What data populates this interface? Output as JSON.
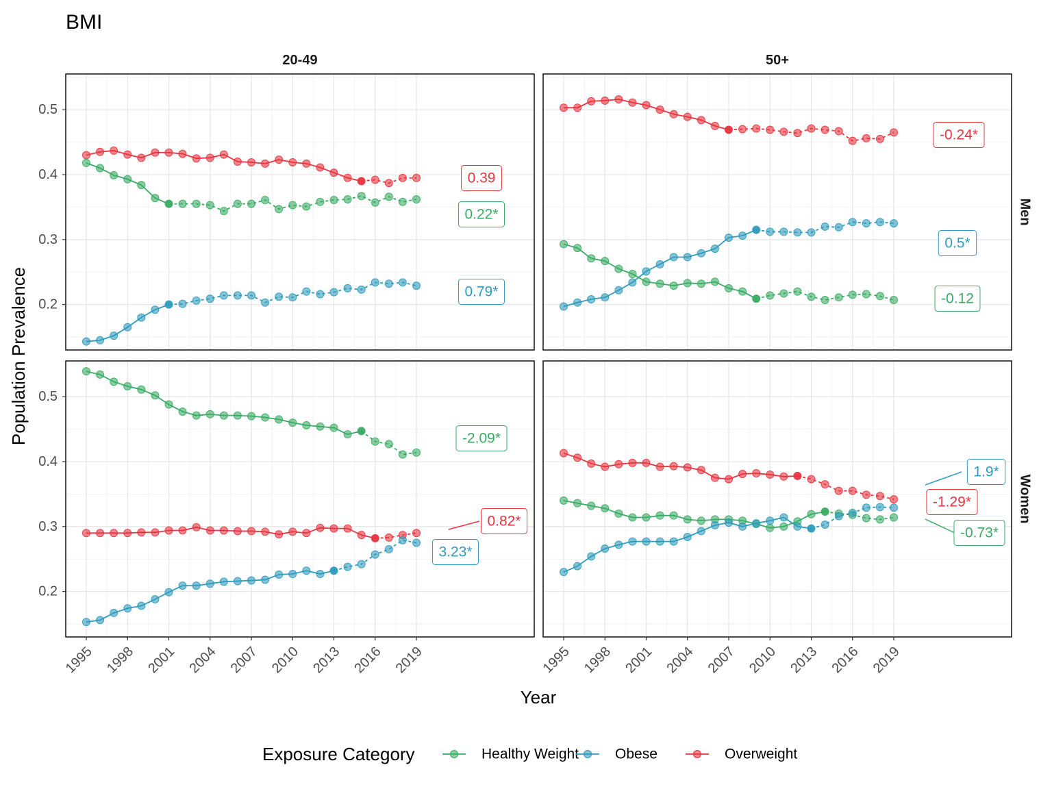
{
  "chart_data": {
    "type": "line",
    "title": "BMI",
    "xlabel": "Year",
    "ylabel": "Population Prevalence",
    "x_ticks": [
      "1995",
      "1998",
      "2001",
      "2004",
      "2007",
      "2010",
      "2013",
      "2016",
      "2019"
    ],
    "y_ticks": [
      "0.2",
      "0.3",
      "0.4",
      "0.5"
    ],
    "ylim": [
      0.13,
      0.555
    ],
    "xlim": [
      1995,
      2019
    ],
    "grid": true,
    "facet_columns": [
      "20-49",
      "50+"
    ],
    "facet_rows": [
      "Men",
      "Women"
    ],
    "legend": {
      "title": "Exposure Category",
      "position": "bottom",
      "entries": [
        "Healthy Weight",
        "Obese",
        "Overweight"
      ]
    },
    "colors": {
      "Healthy Weight": "#3aab64",
      "Obese": "#2e9bbd",
      "Overweight": "#e8343f"
    },
    "years": [
      1995,
      1996,
      1997,
      1998,
      1999,
      2000,
      2001,
      2002,
      2003,
      2004,
      2005,
      2006,
      2007,
      2008,
      2009,
      2010,
      2011,
      2012,
      2013,
      2014,
      2015,
      2016,
      2017,
      2018,
      2019
    ],
    "panels": [
      {
        "column": "20-49",
        "row": "Men",
        "series": [
          {
            "name": "Overweight",
            "breakpoint": 2015,
            "trend_label": "0.39",
            "values": [
              0.43,
              0.435,
              0.437,
              0.431,
              0.426,
              0.434,
              0.434,
              0.432,
              0.425,
              0.426,
              0.431,
              0.42,
              0.419,
              0.417,
              0.423,
              0.419,
              0.417,
              0.411,
              0.403,
              0.395,
              0.39,
              0.392,
              0.387,
              0.395,
              0.395
            ]
          },
          {
            "name": "Healthy Weight",
            "breakpoint": 2001,
            "trend_label": "0.22*",
            "values": [
              0.418,
              0.41,
              0.399,
              0.393,
              0.384,
              0.364,
              0.355,
              0.355,
              0.355,
              0.353,
              0.344,
              0.355,
              0.355,
              0.361,
              0.347,
              0.353,
              0.351,
              0.358,
              0.361,
              0.362,
              0.367,
              0.357,
              0.366,
              0.358,
              0.362
            ]
          },
          {
            "name": "Obese",
            "breakpoint": 2001,
            "trend_label": "0.79*",
            "values": [
              0.143,
              0.145,
              0.152,
              0.165,
              0.18,
              0.192,
              0.2,
              0.201,
              0.206,
              0.209,
              0.214,
              0.214,
              0.214,
              0.203,
              0.212,
              0.211,
              0.22,
              0.216,
              0.219,
              0.225,
              0.223,
              0.234,
              0.232,
              0.234,
              0.229
            ]
          }
        ]
      },
      {
        "column": "50+",
        "row": "Men",
        "series": [
          {
            "name": "Overweight",
            "breakpoint": 2007,
            "trend_label": "-0.24*",
            "values": [
              0.503,
              0.503,
              0.513,
              0.514,
              0.516,
              0.511,
              0.507,
              0.5,
              0.493,
              0.489,
              0.484,
              0.475,
              0.469,
              0.47,
              0.471,
              0.469,
              0.466,
              0.464,
              0.471,
              0.469,
              0.467,
              0.452,
              0.456,
              0.455,
              0.465
            ]
          },
          {
            "name": "Obese",
            "breakpoint": 2009,
            "trend_label": "0.5*",
            "values": [
              0.197,
              0.203,
              0.208,
              0.211,
              0.222,
              0.234,
              0.251,
              0.262,
              0.273,
              0.273,
              0.279,
              0.286,
              0.303,
              0.306,
              0.315,
              0.312,
              0.312,
              0.311,
              0.311,
              0.32,
              0.319,
              0.327,
              0.325,
              0.327,
              0.325
            ]
          },
          {
            "name": "Healthy Weight",
            "breakpoint": 2009,
            "trend_label": "-0.12",
            "values": [
              0.293,
              0.287,
              0.271,
              0.267,
              0.255,
              0.247,
              0.235,
              0.232,
              0.229,
              0.233,
              0.232,
              0.235,
              0.225,
              0.22,
              0.209,
              0.214,
              0.217,
              0.22,
              0.212,
              0.207,
              0.211,
              0.215,
              0.216,
              0.213,
              0.207
            ]
          }
        ]
      },
      {
        "column": "20-49",
        "row": "Women",
        "series": [
          {
            "name": "Healthy Weight",
            "breakpoint": 2015,
            "trend_label": "-2.09*",
            "values": [
              0.539,
              0.534,
              0.523,
              0.516,
              0.511,
              0.502,
              0.488,
              0.477,
              0.471,
              0.473,
              0.471,
              0.471,
              0.47,
              0.468,
              0.465,
              0.46,
              0.456,
              0.454,
              0.452,
              0.442,
              0.447,
              0.431,
              0.427,
              0.411,
              0.414
            ]
          },
          {
            "name": "Overweight",
            "breakpoint": 2016,
            "trend_label": "0.82*",
            "values": [
              0.29,
              0.29,
              0.29,
              0.29,
              0.291,
              0.291,
              0.294,
              0.294,
              0.299,
              0.294,
              0.294,
              0.293,
              0.293,
              0.292,
              0.288,
              0.292,
              0.29,
              0.298,
              0.297,
              0.297,
              0.287,
              0.282,
              0.283,
              0.287,
              0.29
            ]
          },
          {
            "name": "Obese",
            "breakpoint": 2013,
            "trend_label": "3.23*",
            "values": [
              0.153,
              0.156,
              0.167,
              0.174,
              0.178,
              0.188,
              0.199,
              0.209,
              0.209,
              0.212,
              0.215,
              0.216,
              0.217,
              0.218,
              0.226,
              0.227,
              0.232,
              0.227,
              0.232,
              0.238,
              0.242,
              0.257,
              0.265,
              0.279,
              0.275
            ]
          }
        ]
      },
      {
        "column": "50+",
        "row": "Women",
        "series": [
          {
            "name": "Overweight",
            "breakpoint": 2012,
            "trend_label": "-1.29*",
            "values": [
              0.413,
              0.406,
              0.397,
              0.392,
              0.396,
              0.398,
              0.398,
              0.392,
              0.393,
              0.391,
              0.387,
              0.375,
              0.373,
              0.381,
              0.382,
              0.38,
              0.377,
              0.378,
              0.373,
              0.365,
              0.355,
              0.355,
              0.349,
              0.347,
              0.342
            ]
          },
          {
            "name": "Healthy Weight",
            "breakpoint": 2014,
            "trend_label": "-0.73*",
            "values": [
              0.34,
              0.336,
              0.332,
              0.328,
              0.32,
              0.314,
              0.314,
              0.317,
              0.317,
              0.311,
              0.309,
              0.311,
              0.311,
              0.309,
              0.304,
              0.298,
              0.3,
              0.308,
              0.319,
              0.323,
              0.32,
              0.318,
              0.313,
              0.311,
              0.314
            ]
          },
          {
            "name": "Obese",
            "breakpoint": 2013,
            "trend_label": "1.9*",
            "values": [
              0.23,
              0.239,
              0.254,
              0.266,
              0.272,
              0.277,
              0.277,
              0.277,
              0.277,
              0.284,
              0.293,
              0.302,
              0.306,
              0.3,
              0.305,
              0.309,
              0.314,
              0.3,
              0.297,
              0.303,
              0.316,
              0.321,
              0.329,
              0.33,
              0.329
            ]
          }
        ]
      }
    ]
  }
}
